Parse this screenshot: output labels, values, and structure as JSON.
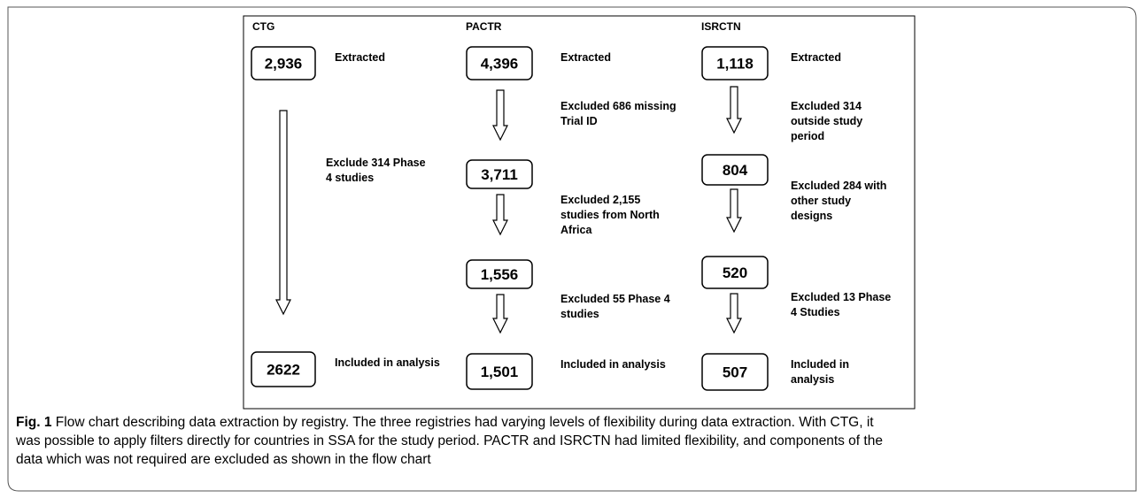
{
  "figure": {
    "columns": [
      {
        "header": "CTG",
        "nodes": [
          {
            "count": "2,936",
            "note": [
              "Extracted"
            ]
          },
          {
            "count": "2622",
            "note": [
              "Included in analysis"
            ]
          }
        ],
        "exclusions": [
          [
            "Exclude 314 Phase",
            "4 studies"
          ]
        ]
      },
      {
        "header": "PACTR",
        "nodes": [
          {
            "count": "4,396",
            "note": [
              "Extracted"
            ]
          },
          {
            "count": "3,711",
            "note": []
          },
          {
            "count": "1,556",
            "note": []
          },
          {
            "count": "1,501",
            "note": [
              "Included in analysis"
            ]
          }
        ],
        "exclusions": [
          [
            "Excluded 686 missing",
            "Trial ID"
          ],
          [
            "Excluded 2,155",
            "studies from North",
            "Africa"
          ],
          [
            "Excluded 55 Phase 4",
            "studies"
          ]
        ]
      },
      {
        "header": "ISRCTN",
        "nodes": [
          {
            "count": "1,118",
            "note": [
              "Extracted"
            ]
          },
          {
            "count": "804",
            "note": []
          },
          {
            "count": "520",
            "note": []
          },
          {
            "count": "507",
            "note": [
              "Included in",
              "analysis"
            ]
          }
        ],
        "exclusions": [
          [
            "Excluded 314",
            "outside study",
            "period"
          ],
          [
            "Excluded 284 with",
            "other study",
            "designs"
          ],
          [
            "Excluded 13 Phase",
            "4 Studies"
          ]
        ]
      }
    ]
  },
  "caption": {
    "label": "Fig. 1",
    "lines": [
      " Flow chart describing data extraction by registry. The three registries had varying levels of flexibility during data extraction. With CTG, it",
      "was possible to apply filters directly for countries in SSA for the study period. PACTR and ISRCTN had limited flexibility, and components of the",
      "data which was not required are excluded as shown in the flow chart"
    ]
  }
}
